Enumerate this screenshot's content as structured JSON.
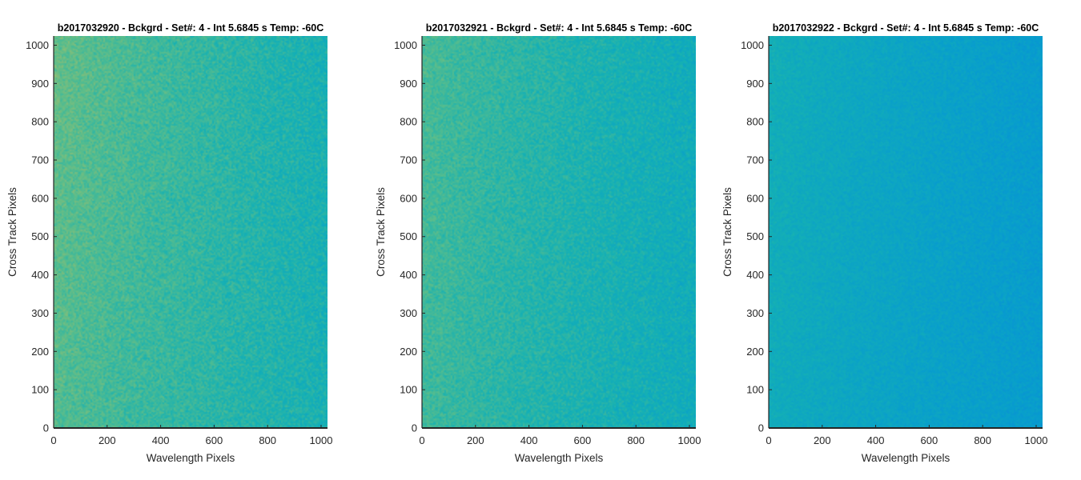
{
  "chart_data": [
    {
      "type": "heatmap",
      "title": "b2017032920 - Bckgrd - Set#: 4 - Int 5.6845 s Temp: -60C",
      "xlabel": "Wavelength Pixels",
      "ylabel": "Cross Track Pixels",
      "xlim": [
        0,
        1024
      ],
      "ylim": [
        0,
        1024
      ],
      "xticks": [
        0,
        200,
        400,
        600,
        800,
        1000
      ],
      "yticks": [
        0,
        100,
        200,
        300,
        400,
        500,
        600,
        700,
        800,
        900,
        1000
      ],
      "colormap": "parula",
      "relative_intensity": {
        "at_x_start": 0.62,
        "at_x_end": 0.5,
        "top_excess": 0.03,
        "noise": 0.1
      }
    },
    {
      "type": "heatmap",
      "title": "b2017032921 - Bckgrd - Set#: 4 - Int 5.6845 s Temp: -60C",
      "xlabel": "Wavelength Pixels",
      "ylabel": "Cross Track Pixels",
      "xlim": [
        0,
        1024
      ],
      "ylim": [
        0,
        1024
      ],
      "xticks": [
        0,
        200,
        400,
        600,
        800,
        1000
      ],
      "yticks": [
        0,
        100,
        200,
        300,
        400,
        500,
        600,
        700,
        800,
        900,
        1000
      ],
      "colormap": "parula",
      "relative_intensity": {
        "at_x_start": 0.58,
        "at_x_end": 0.47,
        "top_excess": 0.02,
        "noise": 0.09
      }
    },
    {
      "type": "heatmap",
      "title": "b2017032922 - Bckgrd - Set#: 4 - Int 5.6845 s Temp: -60C",
      "xlabel": "Wavelength Pixels",
      "ylabel": "Cross Track Pixels",
      "xlim": [
        0,
        1024
      ],
      "ylim": [
        0,
        1024
      ],
      "xticks": [
        0,
        200,
        400,
        600,
        800,
        1000
      ],
      "yticks": [
        0,
        100,
        200,
        300,
        400,
        500,
        600,
        700,
        800,
        900,
        1000
      ],
      "colormap": "parula",
      "relative_intensity": {
        "at_x_start": 0.47,
        "at_x_end": 0.38,
        "top_excess": 0.015,
        "noise": 0.06
      }
    }
  ]
}
